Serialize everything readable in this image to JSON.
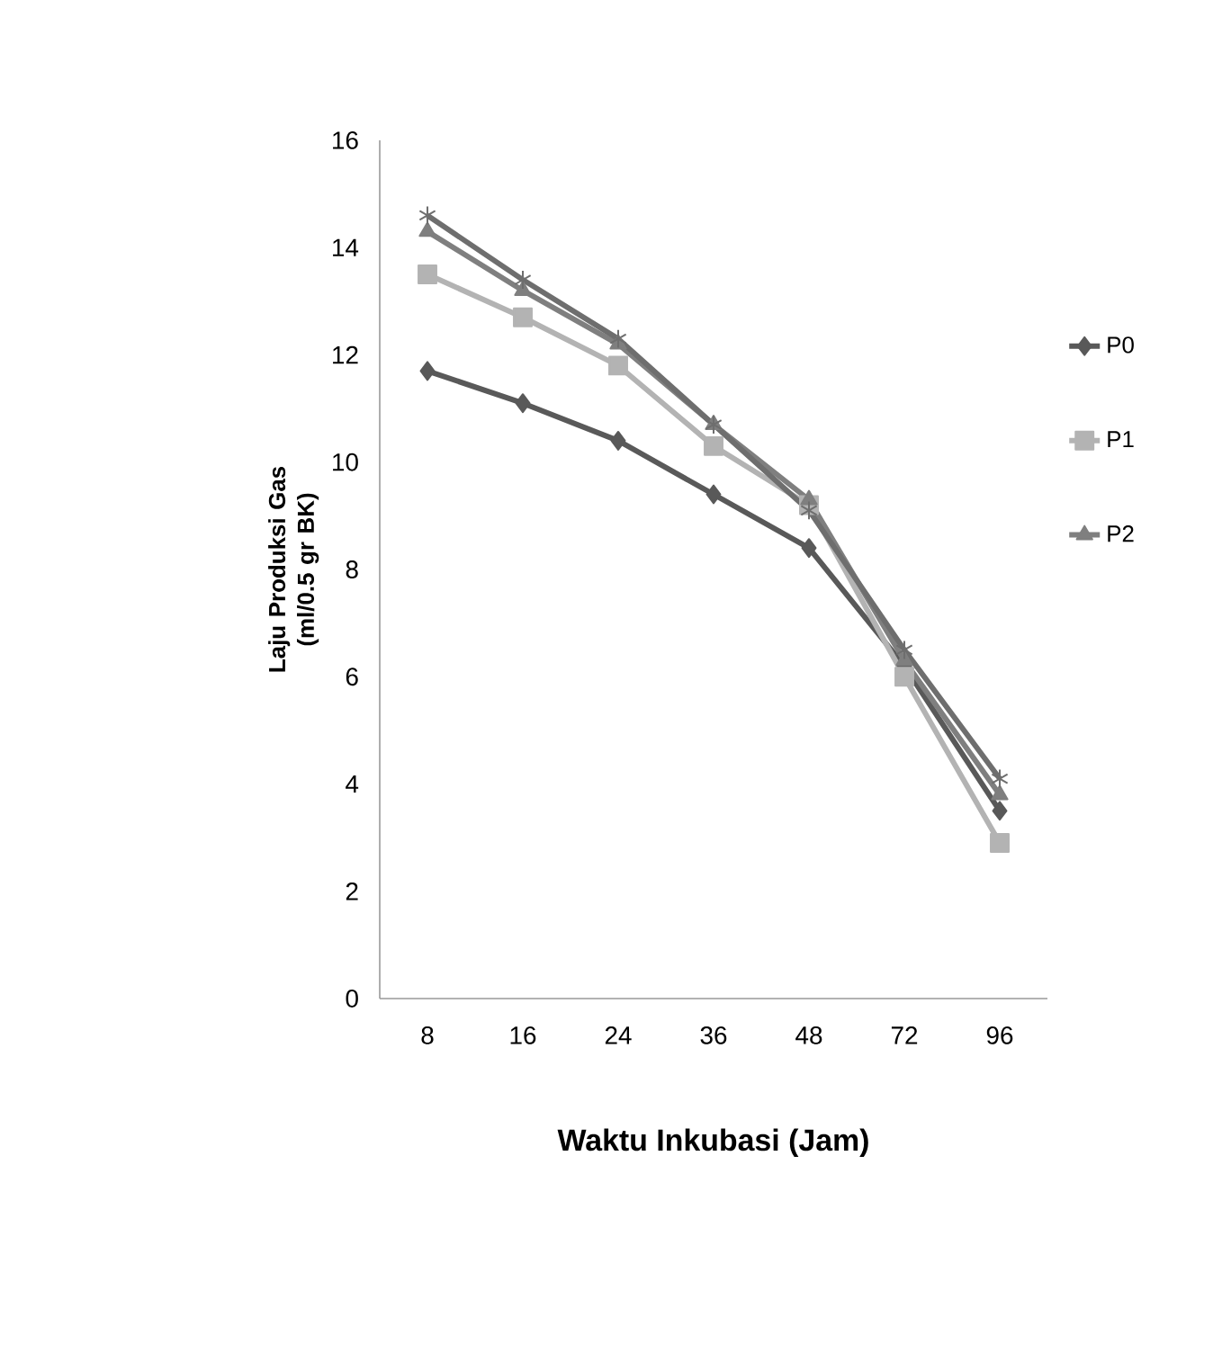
{
  "chart_data": {
    "type": "line",
    "xlabel": "Waktu Inkubasi (Jam)",
    "ylabel": "Laju Produksi Gas (ml/0.5 gr BK)",
    "categories": [
      "8",
      "16",
      "24",
      "36",
      "48",
      "72",
      "96"
    ],
    "series": [
      {
        "name": "P0",
        "color": "#595959",
        "marker": "diamond",
        "values": [
          11.7,
          11.1,
          10.4,
          9.4,
          8.4,
          6.2,
          3.5
        ]
      },
      {
        "name": "P1",
        "color": "#b3b3b3",
        "marker": "square",
        "values": [
          13.5,
          12.7,
          11.8,
          10.3,
          9.2,
          6.0,
          2.9
        ]
      },
      {
        "name": "P2",
        "color": "#7f7f7f",
        "marker": "triangle",
        "values": [
          14.3,
          13.2,
          12.2,
          10.7,
          9.3,
          6.3,
          3.8
        ]
      },
      {
        "color": "#6e6e6e",
        "marker": "cross",
        "values": [
          14.6,
          13.4,
          12.3,
          10.7,
          9.1,
          6.5,
          4.1
        ]
      }
    ],
    "ylim": [
      0,
      16
    ],
    "yticks": [
      0,
      2,
      4,
      6,
      8,
      10,
      12,
      14,
      16
    ],
    "grid": false,
    "legend": "right",
    "line_style": "solid"
  }
}
